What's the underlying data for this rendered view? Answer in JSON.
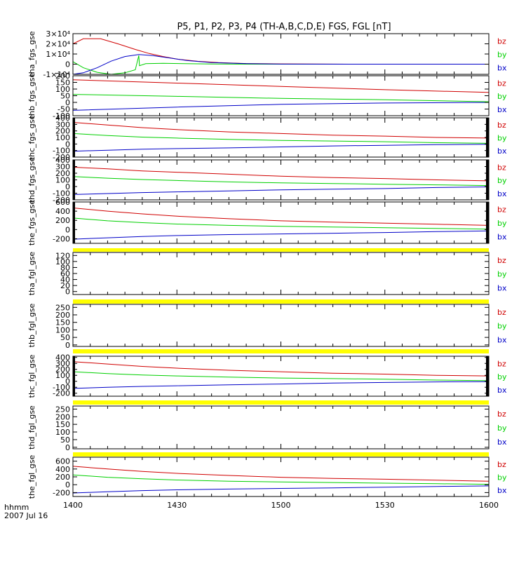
{
  "title": "P5, P1, P2, P3, P4 (TH-A,B,C,D,E) FGS, FGL [nT]",
  "footer": {
    "line1": "hhmm",
    "line2": "2007 Jul 16"
  },
  "x_axis": {
    "ticks": [
      1400,
      1430,
      1500,
      1530,
      1600
    ],
    "tick_labels": [
      "1400",
      "1430",
      "1500",
      "1530",
      "1600"
    ]
  },
  "colors": {
    "bx": "#0000c8",
    "by": "#00d000",
    "bz": "#d00000",
    "flag": "#ffff00",
    "axis": "#000000"
  },
  "chart_data": [
    {
      "type": "line",
      "ylabel": "tha_fgs_gse",
      "ylim": [
        -10000,
        30000
      ],
      "ytick_labels": [
        {
          "v": -10000,
          "t": "-1×10⁴"
        },
        {
          "v": 0,
          "t": "0"
        },
        {
          "v": 10000,
          "t": "1×10⁴"
        },
        {
          "v": 20000,
          "t": "2×10⁴"
        },
        {
          "v": 30000,
          "t": "3×10⁴"
        }
      ],
      "right_bars": false,
      "legend": [
        "bz",
        "by",
        "bx"
      ],
      "series": [
        {
          "name": "bz",
          "x": [
            1400,
            1403,
            1408,
            1413,
            1418,
            1422,
            1426,
            1430,
            1436,
            1442,
            1450,
            1500,
            1520,
            1540,
            1600
          ],
          "y": [
            20000,
            25000,
            25000,
            20000,
            14500,
            10500,
            7500,
            5000,
            2800,
            1500,
            600,
            300,
            0,
            0,
            0
          ]
        },
        {
          "name": "by",
          "x": [
            1400,
            1403,
            1407,
            1411,
            1415,
            1418,
            1419,
            1419.2,
            1421,
            1426,
            1432,
            1440,
            1450,
            1500,
            1520,
            1600
          ],
          "y": [
            2500,
            -3500,
            -8000,
            -10000,
            -8500,
            -5500,
            8500,
            -1500,
            500,
            800,
            500,
            200,
            0,
            0,
            0,
            0
          ]
        },
        {
          "name": "bx",
          "x": [
            1400,
            1403,
            1407,
            1411,
            1415,
            1419,
            1423,
            1428,
            1433,
            1440,
            1450,
            1500,
            1520,
            1600
          ],
          "y": [
            -10000,
            -8500,
            -3500,
            3000,
            7500,
            9500,
            8500,
            6000,
            3500,
            1500,
            500,
            100,
            0,
            0
          ]
        }
      ]
    },
    {
      "type": "line",
      "ylabel": "thb_fgs_gse",
      "ylim": [
        -100,
        200
      ],
      "ytick_labels": [
        {
          "v": -100,
          "t": "-100"
        },
        {
          "v": -50,
          "t": "-50"
        },
        {
          "v": 0,
          "t": "0"
        },
        {
          "v": 50,
          "t": "50"
        },
        {
          "v": 100,
          "t": "100"
        },
        {
          "v": 150,
          "t": "150"
        },
        {
          "v": 200,
          "t": "200"
        }
      ],
      "right_bars": false,
      "legend": [
        "bz",
        "by",
        "bx"
      ],
      "series": [
        {
          "name": "bz",
          "x": [
            1400,
            1430,
            1500,
            1530,
            1600
          ],
          "y": [
            170,
            145,
            120,
            95,
            75
          ]
        },
        {
          "name": "by",
          "x": [
            1400,
            1430,
            1500,
            1530,
            1600
          ],
          "y": [
            60,
            45,
            30,
            20,
            5
          ]
        },
        {
          "name": "bx",
          "x": [
            1400,
            1430,
            1500,
            1530,
            1600
          ],
          "y": [
            -60,
            -35,
            -15,
            -5,
            0
          ]
        }
      ]
    },
    {
      "type": "line",
      "ylabel": "thc_fgs_gse",
      "ylim": [
        -200,
        400
      ],
      "ytick_labels": [
        {
          "v": -200,
          "t": "-200"
        },
        {
          "v": -100,
          "t": "-100"
        },
        {
          "v": 0,
          "t": "0"
        },
        {
          "v": 100,
          "t": "100"
        },
        {
          "v": 200,
          "t": "200"
        },
        {
          "v": 300,
          "t": "300"
        },
        {
          "v": 400,
          "t": "400"
        }
      ],
      "right_bars": true,
      "legend": [
        "bz",
        "by",
        "bx"
      ],
      "series": [
        {
          "name": "bz",
          "x": [
            1400,
            1410,
            1420,
            1430,
            1445,
            1500,
            1515,
            1530,
            1545,
            1600
          ],
          "y": [
            330,
            290,
            250,
            220,
            185,
            160,
            135,
            120,
            100,
            90
          ]
        },
        {
          "name": "by",
          "x": [
            1400,
            1410,
            1420,
            1430,
            1445,
            1500,
            1515,
            1530,
            1545,
            1600
          ],
          "y": [
            160,
            130,
            105,
            90,
            70,
            55,
            45,
            35,
            20,
            10
          ]
        },
        {
          "name": "bx",
          "x": [
            1400,
            1410,
            1420,
            1430,
            1445,
            1500,
            1515,
            1530,
            1545,
            1600
          ],
          "y": [
            -110,
            -95,
            -80,
            -70,
            -60,
            -45,
            -30,
            -20,
            -10,
            -5
          ]
        }
      ]
    },
    {
      "type": "line",
      "ylabel": "thd_fgs_gse",
      "ylim": [
        -200,
        400
      ],
      "ytick_labels": [
        {
          "v": -200,
          "t": "-200"
        },
        {
          "v": -100,
          "t": "-100"
        },
        {
          "v": 0,
          "t": "0"
        },
        {
          "v": 100,
          "t": "100"
        },
        {
          "v": 200,
          "t": "200"
        },
        {
          "v": 300,
          "t": "300"
        },
        {
          "v": 400,
          "t": "400"
        }
      ],
      "right_bars": true,
      "legend": [
        "bz",
        "by",
        "bx"
      ],
      "series": [
        {
          "name": "bz",
          "x": [
            1400,
            1410,
            1420,
            1430,
            1445,
            1500,
            1515,
            1530,
            1545,
            1600
          ],
          "y": [
            290,
            265,
            235,
            215,
            185,
            155,
            135,
            120,
            100,
            85
          ]
        },
        {
          "name": "by",
          "x": [
            1400,
            1410,
            1420,
            1430,
            1445,
            1500,
            1515,
            1530,
            1545,
            1600
          ],
          "y": [
            150,
            125,
            105,
            90,
            70,
            55,
            45,
            35,
            25,
            15
          ]
        },
        {
          "name": "bx",
          "x": [
            1400,
            1410,
            1420,
            1430,
            1445,
            1500,
            1515,
            1530,
            1545,
            1600
          ],
          "y": [
            -120,
            -105,
            -90,
            -80,
            -65,
            -50,
            -40,
            -30,
            -15,
            -5
          ]
        }
      ]
    },
    {
      "type": "line",
      "ylabel": "the_fgs_gse",
      "ylim": [
        -300,
        600
      ],
      "ytick_labels": [
        {
          "v": -200,
          "t": "-200"
        },
        {
          "v": 0,
          "t": "0"
        },
        {
          "v": 200,
          "t": "200"
        },
        {
          "v": 400,
          "t": "400"
        },
        {
          "v": 600,
          "t": "600"
        }
      ],
      "right_bars": true,
      "legend": [
        "bz",
        "by",
        "bx"
      ],
      "series": [
        {
          "name": "bz",
          "x": [
            1400,
            1410,
            1420,
            1430,
            1445,
            1500,
            1515,
            1530,
            1545,
            1600
          ],
          "y": [
            470,
            400,
            340,
            290,
            235,
            190,
            160,
            140,
            115,
            90
          ]
        },
        {
          "name": "by",
          "x": [
            1400,
            1410,
            1420,
            1430,
            1445,
            1500,
            1515,
            1530,
            1545,
            1600
          ],
          "y": [
            250,
            190,
            150,
            120,
            90,
            70,
            55,
            40,
            25,
            10
          ]
        },
        {
          "name": "bx",
          "x": [
            1400,
            1410,
            1420,
            1430,
            1445,
            1500,
            1515,
            1530,
            1545,
            1600
          ],
          "y": [
            -210,
            -180,
            -150,
            -130,
            -110,
            -95,
            -80,
            -65,
            -45,
            -30
          ]
        }
      ]
    },
    {
      "type": "line",
      "ylabel": "tha_fgl_gse",
      "ylim": [
        -10,
        130
      ],
      "ytick_labels": [
        {
          "v": 0,
          "t": "0"
        },
        {
          "v": 20,
          "t": "20"
        },
        {
          "v": 40,
          "t": "40"
        },
        {
          "v": 60,
          "t": "60"
        },
        {
          "v": 80,
          "t": "80"
        },
        {
          "v": 100,
          "t": "100"
        },
        {
          "v": 120,
          "t": "120"
        }
      ],
      "right_bars": false,
      "legend": [
        "bz",
        "by",
        "bx"
      ],
      "series": []
    },
    {
      "type": "line",
      "ylabel": "thb_fgl_gse",
      "ylim": [
        -10,
        270
      ],
      "ytick_labels": [
        {
          "v": 0,
          "t": "0"
        },
        {
          "v": 50,
          "t": "50"
        },
        {
          "v": 100,
          "t": "100"
        },
        {
          "v": 150,
          "t": "150"
        },
        {
          "v": 200,
          "t": "200"
        },
        {
          "v": 250,
          "t": "250"
        }
      ],
      "right_bars": false,
      "legend": [
        "bz",
        "by",
        "bx"
      ],
      "series": []
    },
    {
      "type": "line",
      "ylabel": "thc_fgl_gse",
      "ylim": [
        -250,
        420
      ],
      "ytick_labels": [
        {
          "v": -200,
          "t": "-200"
        },
        {
          "v": -100,
          "t": "-100"
        },
        {
          "v": 0,
          "t": "0"
        },
        {
          "v": 100,
          "t": "100"
        },
        {
          "v": 200,
          "t": "200"
        },
        {
          "v": 300,
          "t": "300"
        },
        {
          "v": 400,
          "t": "400"
        }
      ],
      "right_bars": true,
      "legend": [
        "bz",
        "by",
        "bx"
      ],
      "series": [
        {
          "name": "bz",
          "x": [
            1400,
            1410,
            1420,
            1430,
            1445,
            1500,
            1515,
            1530,
            1545,
            1600
          ],
          "y": [
            330,
            290,
            250,
            220,
            185,
            160,
            135,
            120,
            100,
            90
          ]
        },
        {
          "name": "by",
          "x": [
            1400,
            1410,
            1420,
            1430,
            1445,
            1500,
            1515,
            1530,
            1545,
            1600
          ],
          "y": [
            160,
            130,
            105,
            90,
            70,
            55,
            45,
            35,
            20,
            10
          ]
        },
        {
          "name": "bx",
          "x": [
            1400,
            1410,
            1420,
            1430,
            1445,
            1500,
            1515,
            1530,
            1545,
            1600
          ],
          "y": [
            -120,
            -100,
            -85,
            -75,
            -60,
            -45,
            -30,
            -20,
            -10,
            -5
          ]
        }
      ]
    },
    {
      "type": "line",
      "ylabel": "thd_fgl_gse",
      "ylim": [
        -10,
        270
      ],
      "ytick_labels": [
        {
          "v": 0,
          "t": "0"
        },
        {
          "v": 50,
          "t": "50"
        },
        {
          "v": 100,
          "t": "100"
        },
        {
          "v": 150,
          "t": "150"
        },
        {
          "v": 200,
          "t": "200"
        },
        {
          "v": 250,
          "t": "250"
        }
      ],
      "right_bars": false,
      "legend": [
        "bz",
        "by",
        "bx"
      ],
      "series": []
    },
    {
      "type": "line",
      "ylabel": "the_fgl_gse",
      "ylim": [
        -300,
        700
      ],
      "ytick_labels": [
        {
          "v": -200,
          "t": "-200"
        },
        {
          "v": 0,
          "t": "0"
        },
        {
          "v": 200,
          "t": "200"
        },
        {
          "v": 400,
          "t": "400"
        },
        {
          "v": 600,
          "t": "600"
        }
      ],
      "right_bars": false,
      "legend": [
        "bz",
        "by",
        "bx"
      ],
      "series": [
        {
          "name": "bz",
          "x": [
            1400,
            1410,
            1420,
            1430,
            1445,
            1500,
            1515,
            1530,
            1545,
            1600
          ],
          "y": [
            470,
            400,
            340,
            290,
            235,
            190,
            160,
            140,
            115,
            90
          ]
        },
        {
          "name": "by",
          "x": [
            1400,
            1410,
            1420,
            1430,
            1445,
            1500,
            1515,
            1530,
            1545,
            1600
          ],
          "y": [
            250,
            190,
            150,
            120,
            90,
            70,
            55,
            40,
            25,
            10
          ]
        },
        {
          "name": "bx",
          "x": [
            1400,
            1410,
            1420,
            1430,
            1445,
            1500,
            1515,
            1530,
            1545,
            1600
          ],
          "y": [
            -210,
            -180,
            -150,
            -130,
            -110,
            -95,
            -80,
            -65,
            -45,
            -30
          ]
        }
      ]
    }
  ]
}
